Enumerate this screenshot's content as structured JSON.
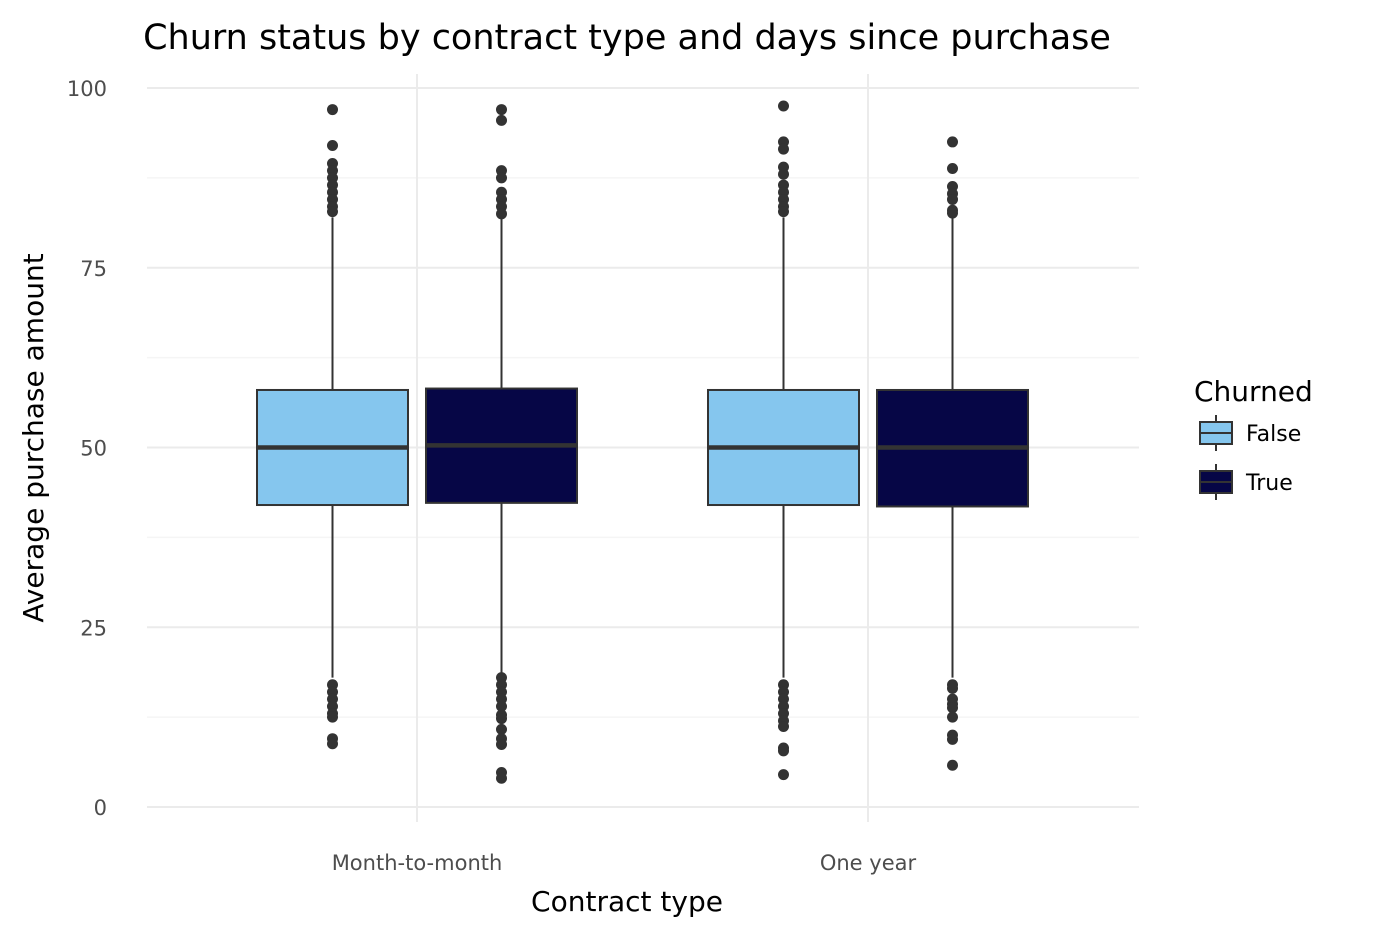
{
  "chart_data": {
    "type": "boxplot",
    "title": "Churn status by contract type and days since purchase",
    "xlabel": "Contract type",
    "ylabel": "Average purchase amount",
    "categories": [
      "Month-to-month",
      "One year"
    ],
    "ylim": [
      0,
      100
    ],
    "yticks": [
      0,
      25,
      50,
      75,
      100
    ],
    "grid": true,
    "legend": {
      "title": "Churned",
      "position": "right"
    },
    "series": [
      {
        "name": "False",
        "color": "#85c6ee",
        "boxes": [
          {
            "q1": 42,
            "median": 50,
            "q3": 58,
            "whisker_low": 18,
            "whisker_high": 82,
            "outliers": [
              97,
              92,
              89.5,
              88.5,
              87.5,
              86.5,
              85.5,
              84.5,
              83.5,
              82.8,
              17,
              16,
              15,
              14,
              13,
              12.5,
              9.5,
              8.8
            ]
          },
          {
            "q1": 42,
            "median": 50,
            "q3": 58,
            "whisker_low": 18,
            "whisker_high": 82,
            "outliers": [
              97.5,
              92.5,
              91.5,
              89,
              88,
              86.5,
              85.5,
              84.5,
              83.5,
              82.8,
              17,
              16,
              15,
              14,
              13,
              12,
              11.2,
              8.2,
              7.8,
              4.5
            ]
          }
        ]
      },
      {
        "name": "True",
        "color": "#060646",
        "boxes": [
          {
            "q1": 42.3,
            "median": 50.3,
            "q3": 58.2,
            "whisker_low": 18,
            "whisker_high": 82,
            "outliers": [
              97,
              95.5,
              88.5,
              87.5,
              85.5,
              84.5,
              83.5,
              82.5,
              18,
              17,
              16,
              15,
              14,
              12.8,
              12.3,
              10.8,
              9.5,
              8.7,
              4.8,
              4
            ]
          },
          {
            "q1": 41.8,
            "median": 50,
            "q3": 58,
            "whisker_low": 18,
            "whisker_high": 82,
            "outliers": [
              92.5,
              88.8,
              86.3,
              85.3,
              84.5,
              83,
              82.6,
              17,
              16.5,
              15,
              14.3,
              13.8,
              12.5,
              10,
              9.4,
              5.8
            ]
          }
        ]
      }
    ]
  }
}
